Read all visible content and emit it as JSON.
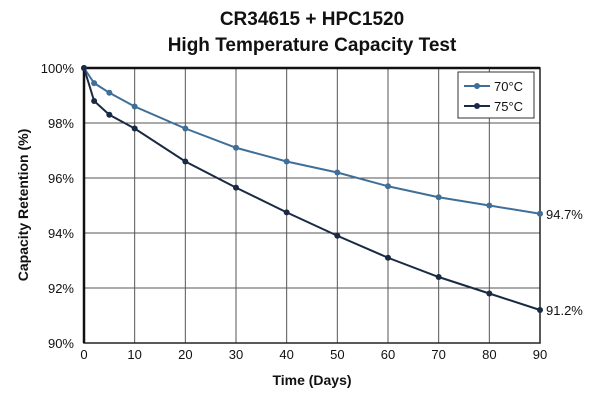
{
  "chart_data": {
    "type": "line",
    "title": "CR34615  + HPC1520",
    "subtitle": "High Temperature Capacity Test",
    "xlabel": "Time (Days)",
    "ylabel": "Capacity Retention (%)",
    "xlim": [
      0,
      90
    ],
    "ylim": [
      90,
      100
    ],
    "xticks": [
      "0",
      "10",
      "20",
      "30",
      "40",
      "50",
      "60",
      "70",
      "80",
      "90"
    ],
    "yticks": [
      "90%",
      "92%",
      "94%",
      "96%",
      "98%",
      "100%"
    ],
    "grid": true,
    "legend_position": "top-right",
    "series": [
      {
        "name": "70°C",
        "color": "#3f6f98",
        "x": [
          0,
          2,
          5,
          10,
          20,
          30,
          40,
          50,
          60,
          70,
          80,
          90
        ],
        "y": [
          100,
          99.45,
          99.1,
          98.6,
          97.8,
          97.1,
          96.6,
          96.2,
          95.7,
          95.3,
          95.0,
          94.7
        ],
        "end_label": "94.7%"
      },
      {
        "name": "75°C",
        "color": "#1b2a44",
        "x": [
          0,
          2,
          5,
          10,
          20,
          30,
          40,
          50,
          60,
          70,
          80,
          90
        ],
        "y": [
          100,
          98.8,
          98.3,
          97.8,
          96.6,
          95.65,
          94.75,
          93.9,
          93.1,
          92.4,
          91.8,
          91.2
        ],
        "end_label": "91.2%"
      }
    ]
  }
}
